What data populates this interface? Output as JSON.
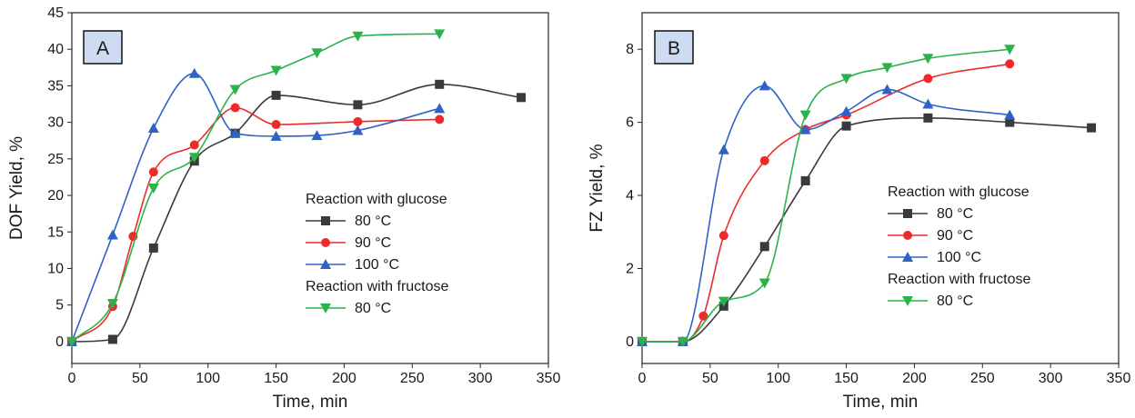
{
  "colors": {
    "glucose_80": "#3a3a3a",
    "glucose_90": "#ee2b2b",
    "glucose_100": "#2f62c6",
    "fructose_80": "#2bb34a",
    "panel_label_bg": "#cddcf0"
  },
  "chart_data": [
    {
      "panel": "A",
      "type": "scatter",
      "xlabel": "Time, min",
      "ylabel": "DOF Yield, %",
      "xlim": [
        0,
        350
      ],
      "ylim": [
        -3,
        45
      ],
      "xticks": [
        0,
        50,
        100,
        150,
        200,
        250,
        300,
        350
      ],
      "yticks": [
        0,
        5,
        10,
        15,
        20,
        25,
        30,
        35,
        40,
        45
      ],
      "grid": false,
      "legend_placement": "center-right",
      "legend_groups": [
        "Reaction with glucose",
        "Reaction with fructose"
      ],
      "series": [
        {
          "name": "80 °C",
          "group": "Reaction with glucose",
          "marker": "square",
          "color": "#3a3a3a",
          "x": [
            0,
            30,
            60,
            90,
            120,
            150,
            210,
            270,
            330
          ],
          "y": [
            0,
            0.3,
            12.8,
            24.7,
            28.5,
            33.7,
            32.4,
            35.2,
            33.4
          ]
        },
        {
          "name": "90 °C",
          "group": "Reaction with glucose",
          "marker": "circle",
          "color": "#ee2b2b",
          "x": [
            0,
            30,
            45,
            60,
            90,
            120,
            150,
            210,
            270
          ],
          "y": [
            0,
            4.8,
            14.4,
            23.2,
            26.9,
            32.0,
            29.7,
            30.1,
            30.4
          ]
        },
        {
          "name": "100 °C",
          "group": "Reaction with glucose",
          "marker": "triangle-up",
          "color": "#2f62c6",
          "x": [
            0,
            30,
            60,
            90,
            120,
            150,
            180,
            210,
            270
          ],
          "y": [
            0,
            14.6,
            29.2,
            36.7,
            28.5,
            28.1,
            28.2,
            28.9,
            31.9
          ]
        },
        {
          "name": "80 °C",
          "group": "Reaction with fructose",
          "marker": "triangle-down",
          "color": "#2bb34a",
          "x": [
            0,
            30,
            60,
            90,
            120,
            150,
            180,
            210,
            270
          ],
          "y": [
            0,
            5.2,
            21.0,
            25.2,
            34.5,
            37.1,
            39.5,
            41.8,
            42.1
          ]
        }
      ]
    },
    {
      "panel": "B",
      "type": "scatter",
      "xlabel": "Time, min",
      "ylabel": "FZ Yield, %",
      "xlim": [
        0,
        350
      ],
      "ylim": [
        -0.6,
        9
      ],
      "xticks": [
        0,
        50,
        100,
        150,
        200,
        250,
        300,
        350
      ],
      "yticks": [
        0,
        2,
        4,
        6,
        8
      ],
      "grid": false,
      "legend_placement": "center-right",
      "legend_groups": [
        "Reaction with glucose",
        "Reaction with fructose"
      ],
      "series": [
        {
          "name": "80 °C",
          "group": "Reaction with glucose",
          "marker": "square",
          "color": "#3a3a3a",
          "x": [
            0,
            30,
            60,
            90,
            120,
            150,
            210,
            270,
            330
          ],
          "y": [
            0,
            0,
            0.97,
            2.6,
            4.4,
            5.9,
            6.12,
            6.0,
            5.85
          ]
        },
        {
          "name": "90 °C",
          "group": "Reaction with glucose",
          "marker": "circle",
          "color": "#ee2b2b",
          "x": [
            0,
            30,
            45,
            60,
            90,
            120,
            150,
            210,
            270
          ],
          "y": [
            0,
            0,
            0.7,
            2.9,
            4.95,
            5.8,
            6.2,
            7.2,
            7.6
          ]
        },
        {
          "name": "100 °C",
          "group": "Reaction with glucose",
          "marker": "triangle-up",
          "color": "#2f62c6",
          "x": [
            0,
            30,
            60,
            90,
            120,
            150,
            180,
            210,
            270
          ],
          "y": [
            0,
            0,
            5.25,
            7.0,
            5.8,
            6.3,
            6.9,
            6.5,
            6.2
          ]
        },
        {
          "name": "80 °C",
          "group": "Reaction with fructose",
          "marker": "triangle-down",
          "color": "#2bb34a",
          "x": [
            0,
            30,
            60,
            90,
            120,
            150,
            180,
            210,
            270
          ],
          "y": [
            0,
            0,
            1.1,
            1.6,
            6.2,
            7.2,
            7.5,
            7.75,
            8.0
          ]
        }
      ]
    }
  ]
}
